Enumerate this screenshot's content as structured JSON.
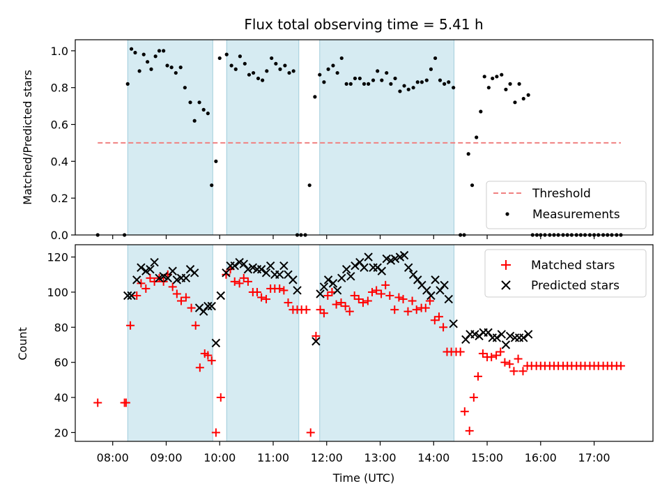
{
  "chart_data": [
    {
      "type": "scatter",
      "title": "Flux total observing time = 5.41 h",
      "ylabel": "Matched/Predicted stars",
      "ylim": [
        0,
        1.06
      ],
      "yticks": [
        "0.0",
        "0.2",
        "0.4",
        "0.6",
        "0.8",
        "1.0"
      ],
      "ytick_values": [
        0,
        0.2,
        0.4,
        0.6,
        0.8,
        1.0
      ],
      "xlim": [
        7.3,
        18.1
      ],
      "xtick_values": [
        8,
        9,
        10,
        11,
        12,
        13,
        14,
        15,
        16,
        17
      ],
      "threshold": {
        "name": "Threshold",
        "value": 0.5,
        "x_range": [
          7.72,
          17.5
        ],
        "color": "#f08080"
      },
      "shaded_intervals": [
        [
          8.28,
          9.87
        ],
        [
          10.13,
          11.48
        ],
        [
          11.87,
          14.38
        ]
      ],
      "legend_position": "lower-right",
      "series": [
        {
          "name": "Measurements",
          "color": "#000000",
          "x": [
            7.72,
            8.22,
            8.28,
            8.35,
            8.42,
            8.5,
            8.58,
            8.65,
            8.72,
            8.8,
            8.87,
            8.95,
            9.02,
            9.1,
            9.18,
            9.27,
            9.35,
            9.45,
            9.53,
            9.62,
            9.7,
            9.78,
            9.85,
            9.93,
            10.0,
            10.13,
            10.22,
            10.3,
            10.38,
            10.47,
            10.55,
            10.63,
            10.72,
            10.8,
            10.88,
            10.97,
            11.05,
            11.13,
            11.22,
            11.3,
            11.38,
            11.45,
            11.52,
            11.6,
            11.68,
            11.78,
            11.87,
            11.95,
            12.03,
            12.12,
            12.2,
            12.28,
            12.37,
            12.45,
            12.53,
            12.62,
            12.7,
            12.78,
            12.87,
            12.95,
            13.03,
            13.12,
            13.2,
            13.28,
            13.37,
            13.45,
            13.53,
            13.62,
            13.7,
            13.78,
            13.87,
            13.95,
            14.03,
            14.12,
            14.2,
            14.28,
            14.37,
            14.5,
            14.57,
            14.65,
            14.72,
            14.8,
            14.88,
            14.95,
            15.03,
            15.1,
            15.18,
            15.27,
            15.35,
            15.43,
            15.52,
            15.6,
            15.68,
            15.77,
            15.85,
            15.93,
            16.0,
            16.08,
            16.17,
            16.25,
            16.33,
            16.42,
            16.5,
            16.58,
            16.67,
            16.75,
            16.83,
            16.92,
            17.0,
            17.08,
            17.17,
            17.25,
            17.33,
            17.42,
            17.5
          ],
          "y": [
            0.0,
            0.0,
            0.82,
            1.01,
            0.99,
            0.89,
            0.98,
            0.94,
            0.9,
            0.97,
            1.0,
            1.0,
            0.92,
            0.91,
            0.88,
            0.91,
            0.8,
            0.72,
            0.62,
            0.72,
            0.68,
            0.66,
            0.27,
            0.4,
            0.96,
            0.98,
            0.92,
            0.9,
            0.97,
            0.93,
            0.87,
            0.88,
            0.85,
            0.84,
            0.89,
            0.96,
            0.93,
            0.9,
            0.92,
            0.88,
            0.89,
            0.0,
            0.0,
            0.0,
            0.27,
            0.75,
            0.87,
            0.83,
            0.9,
            0.92,
            0.88,
            0.96,
            0.82,
            0.82,
            0.85,
            0.85,
            0.82,
            0.82,
            0.84,
            0.89,
            0.84,
            0.88,
            0.82,
            0.85,
            0.78,
            0.81,
            0.79,
            0.8,
            0.83,
            0.83,
            0.84,
            0.9,
            0.96,
            0.84,
            0.82,
            0.83,
            0.8,
            0.0,
            0.0,
            0.44,
            0.27,
            0.53,
            0.67,
            0.86,
            0.8,
            0.85,
            0.86,
            0.87,
            0.79,
            0.82,
            0.72,
            0.82,
            0.74,
            0.76,
            0.0,
            0.0,
            0.0,
            0.0,
            0.0,
            0.0,
            0.0,
            0.0,
            0.0,
            0.0,
            0.0,
            0.0,
            0.0,
            0.0,
            0.0,
            0.0,
            0.0,
            0.0,
            0.0,
            0.0,
            0.0
          ]
        }
      ]
    },
    {
      "type": "scatter",
      "xlabel": "Time (UTC)",
      "ylabel": "Count",
      "ylim": [
        15,
        127
      ],
      "yticks": [
        "20",
        "40",
        "60",
        "80",
        "100",
        "120"
      ],
      "ytick_values": [
        20,
        40,
        60,
        80,
        100,
        120
      ],
      "xlim": [
        7.3,
        18.1
      ],
      "xticks": [
        "08:00",
        "09:00",
        "10:00",
        "11:00",
        "12:00",
        "13:00",
        "14:00",
        "15:00",
        "16:00",
        "17:00"
      ],
      "xtick_values": [
        8,
        9,
        10,
        11,
        12,
        13,
        14,
        15,
        16,
        17
      ],
      "shaded_intervals": [
        [
          8.28,
          9.87
        ],
        [
          10.13,
          11.48
        ],
        [
          11.87,
          14.38
        ]
      ],
      "legend_position": "upper-right",
      "series": [
        {
          "name": "Matched stars",
          "color": "#ff0000",
          "marker": "plus",
          "x": [
            7.72,
            8.22,
            8.25,
            8.33,
            8.45,
            8.53,
            8.62,
            8.7,
            8.78,
            8.87,
            8.95,
            9.03,
            9.12,
            9.2,
            9.28,
            9.37,
            9.47,
            9.55,
            9.63,
            9.72,
            9.78,
            9.85,
            9.93,
            10.02,
            10.12,
            10.2,
            10.28,
            10.37,
            10.45,
            10.53,
            10.62,
            10.7,
            10.78,
            10.87,
            10.95,
            11.03,
            11.12,
            11.2,
            11.28,
            11.37,
            11.45,
            11.53,
            11.62,
            11.7,
            11.8,
            11.88,
            11.95,
            12.02,
            12.1,
            12.18,
            12.27,
            12.35,
            12.43,
            12.52,
            12.6,
            12.68,
            12.77,
            12.85,
            12.93,
            13.02,
            13.1,
            13.18,
            13.27,
            13.35,
            13.43,
            13.52,
            13.6,
            13.68,
            13.77,
            13.85,
            13.93,
            14.02,
            14.1,
            14.18,
            14.25,
            14.33,
            14.42,
            14.5,
            14.58,
            14.67,
            14.75,
            14.83,
            14.92,
            15.0,
            15.08,
            15.17,
            15.25,
            15.33,
            15.42,
            15.5,
            15.58,
            15.67,
            15.75,
            15.83,
            15.92,
            16.0,
            16.08,
            16.17,
            16.25,
            16.33,
            16.42,
            16.5,
            16.58,
            16.67,
            16.75,
            16.83,
            16.92,
            17.0,
            17.08,
            17.17,
            17.25,
            17.33,
            17.42,
            17.5
          ],
          "y": [
            37,
            37,
            37,
            81,
            98,
            105,
            102,
            108,
            106,
            108,
            106,
            110,
            103,
            99,
            95,
            97,
            91,
            81,
            57,
            65,
            64,
            61,
            20,
            40,
            110,
            113,
            106,
            105,
            108,
            106,
            100,
            100,
            97,
            96,
            102,
            102,
            102,
            101,
            94,
            90,
            90,
            90,
            90,
            20,
            75,
            90,
            88,
            98,
            100,
            93,
            94,
            92,
            89,
            98,
            96,
            94,
            95,
            100,
            101,
            99,
            104,
            98,
            90,
            97,
            96,
            89,
            95,
            90,
            91,
            91,
            95,
            84,
            86,
            80,
            66,
            66,
            66,
            66,
            32,
            21,
            40,
            52,
            65,
            63,
            63,
            64,
            66,
            60,
            59,
            55,
            62,
            55,
            58,
            58,
            58,
            58,
            58,
            58,
            58,
            58,
            58,
            58,
            58,
            58,
            58,
            58,
            58,
            58,
            58,
            58,
            58,
            58,
            58,
            58
          ]
        },
        {
          "name": "Predicted stars",
          "color": "#000000",
          "marker": "x",
          "x": [
            8.28,
            8.35,
            8.45,
            8.53,
            8.62,
            8.7,
            8.78,
            8.87,
            8.95,
            9.03,
            9.12,
            9.2,
            9.28,
            9.37,
            9.45,
            9.53,
            9.62,
            9.7,
            9.78,
            9.85,
            9.93,
            10.02,
            10.12,
            10.2,
            10.28,
            10.37,
            10.45,
            10.53,
            10.62,
            10.7,
            10.78,
            10.87,
            10.95,
            11.03,
            11.12,
            11.2,
            11.28,
            11.37,
            11.45,
            11.8,
            11.88,
            11.95,
            12.03,
            12.12,
            12.2,
            12.28,
            12.37,
            12.45,
            12.53,
            12.62,
            12.7,
            12.78,
            12.87,
            12.95,
            13.03,
            13.12,
            13.2,
            13.28,
            13.37,
            13.45,
            13.53,
            13.62,
            13.7,
            13.78,
            13.87,
            13.95,
            14.03,
            14.12,
            14.2,
            14.28,
            14.37,
            14.6,
            14.68,
            14.77,
            14.85,
            14.93,
            15.02,
            15.1,
            15.18,
            15.27,
            15.35,
            15.43,
            15.52,
            15.6,
            15.68,
            15.77
          ],
          "y": [
            98,
            98,
            107,
            114,
            112,
            113,
            117,
            108,
            109,
            108,
            112,
            107,
            108,
            108,
            113,
            111,
            91,
            89,
            92,
            92,
            71,
            98,
            111,
            115,
            115,
            117,
            116,
            113,
            114,
            113,
            113,
            111,
            115,
            110,
            110,
            115,
            110,
            107,
            101,
            72,
            99,
            103,
            107,
            105,
            101,
            108,
            113,
            109,
            115,
            117,
            114,
            120,
            114,
            114,
            112,
            119,
            118,
            119,
            120,
            121,
            114,
            110,
            107,
            104,
            101,
            98,
            107,
            101,
            104,
            96,
            82,
            73,
            76,
            76,
            75,
            77,
            77,
            74,
            74,
            76,
            70,
            75,
            74,
            74,
            74,
            76
          ]
        }
      ]
    }
  ]
}
